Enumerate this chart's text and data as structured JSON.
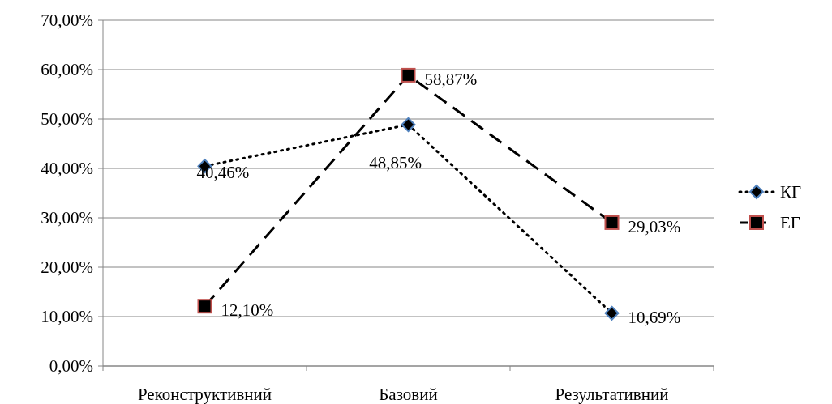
{
  "chart_data": {
    "type": "line",
    "categories": [
      "Реконструктивний",
      "Базовий",
      "Результативний"
    ],
    "series": [
      {
        "name": "КГ",
        "color": "#000000",
        "marker": "diamond",
        "line_style": "dotted",
        "values": [
          40.46,
          48.85,
          10.69
        ],
        "value_labels": [
          "40,46%",
          "48,85%",
          "10,69%"
        ]
      },
      {
        "name": "ЕГ",
        "color": "#000000",
        "marker": "square",
        "line_style": "dashed",
        "values": [
          12.1,
          58.87,
          29.03
        ],
        "value_labels": [
          "12,10%",
          "58,87%",
          "29,03%"
        ]
      }
    ],
    "ylim": [
      0,
      70
    ],
    "yticks": [
      {
        "value": 0,
        "label": "0,00%"
      },
      {
        "value": 10,
        "label": "10,00%"
      },
      {
        "value": 20,
        "label": "20,00%"
      },
      {
        "value": 30,
        "label": "30,00%"
      },
      {
        "value": 40,
        "label": "40,00%"
      },
      {
        "value": 50,
        "label": "50,00%"
      },
      {
        "value": 60,
        "label": "60,00%"
      },
      {
        "value": 70,
        "label": "70,00%"
      }
    ],
    "grid": "y",
    "legend": "right"
  }
}
